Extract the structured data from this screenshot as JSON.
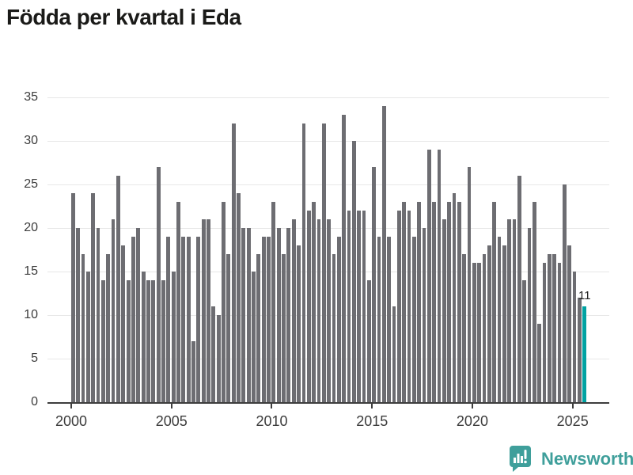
{
  "title": "Födda per kvartal i Eda",
  "chart_data": {
    "type": "bar",
    "title": "Födda per kvartal i Eda",
    "x_start": "2000-Q1",
    "x_end": "2025-Q3",
    "quarters_per_year": 4,
    "start_year": 2000,
    "values": [
      24,
      20,
      17,
      15,
      24,
      20,
      14,
      17,
      21,
      26,
      18,
      14,
      19,
      20,
      15,
      14,
      14,
      27,
      14,
      19,
      15,
      23,
      19,
      19,
      7,
      19,
      21,
      21,
      11,
      10,
      23,
      17,
      32,
      24,
      20,
      20,
      15,
      17,
      19,
      19,
      23,
      20,
      17,
      20,
      21,
      18,
      32,
      22,
      23,
      21,
      32,
      21,
      17,
      19,
      33,
      22,
      30,
      22,
      22,
      14,
      27,
      19,
      34,
      19,
      11,
      22,
      23,
      22,
      19,
      23,
      20,
      29,
      23,
      29,
      21,
      23,
      24,
      23,
      17,
      27,
      16,
      16,
      17,
      18,
      23,
      19,
      18,
      21,
      21,
      26,
      14,
      20,
      23,
      9,
      16,
      17,
      17,
      16,
      25,
      18,
      15,
      12,
      11
    ],
    "highlight_index": 102,
    "highlight_value_label": "11",
    "y_ticks": [
      0,
      5,
      10,
      15,
      20,
      25,
      30,
      35
    ],
    "x_ticks": [
      2000,
      2005,
      2010,
      2015,
      2020,
      2025
    ],
    "ylim": [
      0,
      35
    ],
    "grid": "horizontal",
    "legend": "none",
    "bar_color": "#6d6d72",
    "highlight_color": "#00a2a2",
    "axis_color": "#3d3d3d",
    "label_color": "#3c3c3c"
  },
  "branding": {
    "logo_text": "Newsworthy",
    "logo_color": "#3f9f9b",
    "logo_icon": "speech-bubble-bar-chart-icon"
  }
}
